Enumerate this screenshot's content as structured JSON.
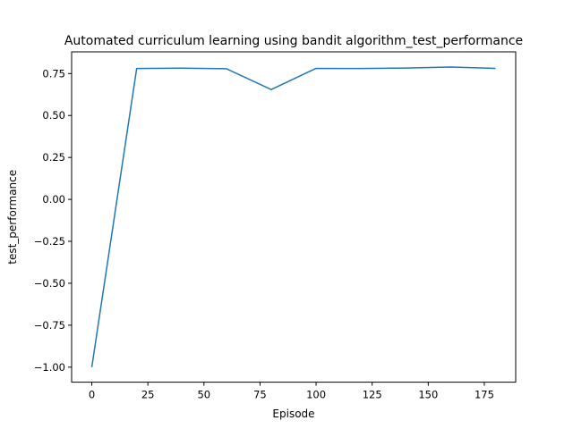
{
  "chart_data": {
    "type": "line",
    "title": "Automated curriculum learning using bandit algorithm_test_performance",
    "xlabel": "Episode",
    "ylabel": "test_performance",
    "xlim": [
      -9,
      189
    ],
    "ylim": [
      -1.0895,
      0.8795
    ],
    "xticks": [
      0,
      25,
      50,
      75,
      100,
      125,
      150,
      175
    ],
    "yticks": [
      -1.0,
      -0.75,
      -0.5,
      -0.25,
      0.0,
      0.25,
      0.5,
      0.75
    ],
    "ytick_labels": [
      "−1.00",
      "−0.75",
      "−0.50",
      "−0.25",
      "0.00",
      "0.25",
      "0.50",
      "0.75"
    ],
    "grid": false,
    "series": [
      {
        "color": "#1f77b4",
        "x": [
          0,
          20,
          40,
          60,
          80,
          100,
          120,
          140,
          160,
          180
        ],
        "y": [
          -1.0,
          0.78,
          0.782,
          0.779,
          0.655,
          0.781,
          0.78,
          0.783,
          0.789,
          0.781
        ]
      }
    ]
  }
}
